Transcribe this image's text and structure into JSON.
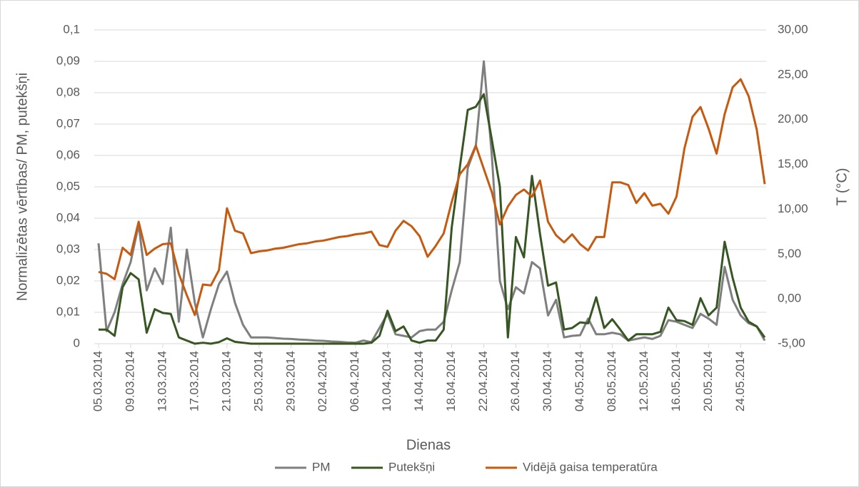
{
  "chart_data": {
    "type": "line",
    "x_label": "Dienas",
    "y_label": "Normalizētas vērtības/ PM, putekšņi",
    "y2_label": "T (°C)",
    "categories": [
      "05.03.2014",
      null,
      null,
      null,
      "09.03.2014",
      null,
      null,
      null,
      "13.03.2014",
      null,
      null,
      null,
      "17.03.2014",
      null,
      null,
      null,
      "21.03.2014",
      null,
      null,
      null,
      "25.03.2014",
      null,
      null,
      null,
      "29.03.2014",
      null,
      null,
      null,
      "02.04.2014",
      null,
      null,
      null,
      "06.04.2014",
      null,
      null,
      null,
      "10.04.2014",
      null,
      null,
      null,
      "14.04.2014",
      null,
      null,
      null,
      "18.04.2014",
      null,
      null,
      null,
      "22.04.2014",
      null,
      null,
      null,
      "26.04.2014",
      null,
      null,
      null,
      "30.04.2014",
      null,
      null,
      null,
      "04.05.2014",
      null,
      null,
      null,
      "08.05.2014",
      null,
      null,
      null,
      "12.05.2014",
      null,
      null,
      null,
      "16.05.2014",
      null,
      null,
      null,
      "20.05.2014",
      null,
      null,
      null,
      "24.05.2014",
      null,
      null,
      null
    ],
    "series": [
      {
        "name": "PM",
        "color": "#7f7f7f",
        "values": [
          0.032,
          0.004,
          0.01,
          0.019,
          0.026,
          0.038,
          0.017,
          0.024,
          0.019,
          0.037,
          0.007,
          0.03,
          0.013,
          0.002,
          0.011,
          0.019,
          0.023,
          0.013,
          0.006,
          0.002,
          0.002,
          0.002,
          0.0018,
          0.0016,
          0.0015,
          0.0013,
          0.0012,
          0.001,
          0.0009,
          0.0007,
          0.0006,
          0.0004,
          0.0003,
          0.001,
          0.0005,
          0.005,
          0.0095,
          0.003,
          0.0025,
          0.002,
          0.004,
          0.0045,
          0.0045,
          0.007,
          0.017,
          0.026,
          0.056,
          0.063,
          0.09,
          0.06,
          0.02,
          0.011,
          0.018,
          0.016,
          0.026,
          0.024,
          0.009,
          0.014,
          0.002,
          0.0025,
          0.0027,
          0.008,
          0.003,
          0.003,
          0.0035,
          0.003,
          0.001,
          0.0015,
          0.002,
          0.0015,
          0.0025,
          0.0075,
          0.007,
          0.006,
          0.005,
          0.0095,
          0.008,
          0.006,
          0.0245,
          0.014,
          0.009,
          0.0065,
          0.0055,
          0.001
        ]
      },
      {
        "name": "Putekšņi",
        "color": "#375623",
        "values": [
          0.0045,
          0.0045,
          0.0025,
          0.018,
          0.0225,
          0.0205,
          0.0035,
          0.011,
          0.0098,
          0.0095,
          0.002,
          0.001,
          0,
          0.0003,
          0,
          0.0005,
          0.0017,
          0.0006,
          0.0003,
          0,
          0,
          0,
          0,
          0,
          0,
          0,
          0,
          0,
          0,
          0,
          0,
          0,
          0,
          0,
          0.0003,
          0.0025,
          0.0105,
          0.004,
          0.0055,
          0.001,
          0.0003,
          0.001,
          0.001,
          0.0045,
          0.037,
          0.056,
          0.0745,
          0.0755,
          0.0795,
          0.065,
          0.05,
          0.002,
          0.034,
          0.0275,
          0.0535,
          0.035,
          0.0185,
          0.0195,
          0.0045,
          0.005,
          0.0068,
          0.0065,
          0.0148,
          0.005,
          0.0078,
          0.0045,
          0.001,
          0.003,
          0.003,
          0.003,
          0.0038,
          0.0115,
          0.0075,
          0.0072,
          0.006,
          0.0145,
          0.009,
          0.0115,
          0.0325,
          0.021,
          0.0115,
          0.007,
          0.0055,
          0.002
        ]
      },
      {
        "name": "Vidējā gaisa temperatūra",
        "color": "#c55a11",
        "axis": "y2",
        "values": [
          3.0,
          2.8,
          2.2,
          5.7,
          4.9,
          8.6,
          4.9,
          5.6,
          6.1,
          6.2,
          2.8,
          0.4,
          -1.8,
          1.6,
          1.5,
          3.2,
          10.1,
          7.6,
          7.3,
          5.1,
          5.3,
          5.4,
          5.6,
          5.7,
          5.9,
          6.1,
          6.2,
          6.4,
          6.5,
          6.7,
          6.9,
          7.0,
          7.2,
          7.3,
          7.5,
          6.0,
          5.8,
          7.6,
          8.7,
          8.1,
          7.0,
          4.7,
          5.9,
          7.3,
          10.8,
          13.9,
          15.0,
          17.1,
          14.5,
          11.9,
          8.3,
          10.3,
          11.6,
          12.2,
          11.4,
          13.2,
          8.6,
          7.1,
          6.3,
          7.2,
          6.1,
          5.4,
          6.9,
          6.9,
          13.0,
          13.0,
          12.7,
          10.7,
          11.8,
          10.4,
          10.6,
          9.5,
          11.4,
          16.8,
          20.3,
          21.4,
          19.0,
          16.2,
          20.6,
          23.6,
          24.5,
          22.6,
          18.9,
          12.8
        ]
      }
    ],
    "ylim": [
      0,
      0.1
    ],
    "yticks": [
      0,
      {
        "value": 0.01,
        "label": "0,01"
      },
      {
        "value": 0.02,
        "label": "0,02"
      },
      {
        "value": 0.03,
        "label": "0,03"
      },
      {
        "value": 0.04,
        "label": "0,04"
      },
      {
        "value": 0.05,
        "label": "0,05"
      },
      {
        "value": 0.06,
        "label": "0,06"
      },
      {
        "value": 0.07,
        "label": "0,07"
      },
      {
        "value": 0.08,
        "label": "0,08"
      },
      {
        "value": 0.09,
        "label": "0,09"
      },
      {
        "value": 0.1,
        "label": "0,1"
      }
    ],
    "y2lim": [
      -5,
      30
    ],
    "y2ticks": [
      {
        "value": -5,
        "label": "-5,00"
      },
      {
        "value": 0,
        "label": "0,00"
      },
      {
        "value": 5,
        "label": "5,00"
      },
      {
        "value": 10,
        "label": "10,00"
      },
      {
        "value": 15,
        "label": "15,00"
      },
      {
        "value": 20,
        "label": "20,00"
      },
      {
        "value": 25,
        "label": "25,00"
      },
      {
        "value": 30,
        "label": "30,00"
      }
    ],
    "grid": true,
    "legend": "bottom"
  }
}
